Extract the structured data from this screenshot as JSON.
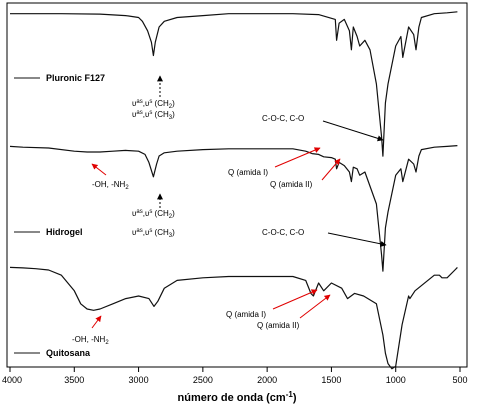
{
  "chart_data": {
    "type": "line",
    "xlabel": "número de onda (cm",
    "xlabel_sup": "-1",
    "xlabel_close": ")",
    "xlim": [
      4000,
      500
    ],
    "x_ticks": [
      "4000",
      "3500",
      "3000",
      "2500",
      "2000",
      "1500",
      "1000",
      "500"
    ],
    "x_tick_values": [
      4000,
      3500,
      3000,
      2500,
      2000,
      1500,
      1000,
      500
    ],
    "grid": false,
    "legend_placement": "left of each curve",
    "series": [
      {
        "name": "Pluronic F127",
        "x": [
          4000,
          3600,
          3300,
          3100,
          3000,
          2970,
          2930,
          2900,
          2885,
          2870,
          2840,
          2800,
          2700,
          2500,
          2300,
          2000,
          1800,
          1600,
          1470,
          1460,
          1440,
          1400,
          1360,
          1345,
          1330,
          1300,
          1280,
          1240,
          1200,
          1150,
          1110,
          1100,
          1080,
          1060,
          1000,
          960,
          945,
          900,
          860,
          842,
          820,
          800,
          700,
          600,
          520
        ],
        "y": [
          97,
          97,
          96.8,
          96,
          95,
          93,
          88,
          82,
          75,
          82,
          90,
          93,
          95,
          96,
          97,
          97,
          97,
          96.5,
          94,
          83,
          92,
          94,
          88,
          78,
          90,
          85,
          80,
          83,
          78,
          60,
          32,
          22,
          50,
          60,
          80,
          85,
          74,
          90,
          86,
          78,
          90,
          95,
          97,
          97.5,
          98
        ]
      },
      {
        "name": "Hidrogel",
        "x": [
          4000,
          3900,
          3700,
          3500,
          3400,
          3300,
          3200,
          3100,
          3000,
          2950,
          2920,
          2885,
          2860,
          2840,
          2800,
          2700,
          2500,
          2300,
          2000,
          1800,
          1700,
          1650,
          1600,
          1560,
          1500,
          1470,
          1460,
          1440,
          1400,
          1360,
          1345,
          1330,
          1300,
          1280,
          1240,
          1150,
          1110,
          1100,
          1080,
          1060,
          1000,
          960,
          945,
          900,
          860,
          842,
          820,
          800,
          700,
          600,
          520
        ],
        "y": [
          96,
          95.5,
          95,
          93,
          92.5,
          92.5,
          93,
          93.5,
          93,
          91,
          86,
          77,
          85,
          90,
          92,
          93,
          94,
          94.5,
          94.5,
          94.5,
          93,
          91.5,
          91,
          89.5,
          89,
          88,
          82,
          86,
          84,
          80,
          74,
          83,
          82,
          78,
          80,
          60,
          28,
          18,
          45,
          55,
          78,
          82,
          74,
          88,
          85,
          80,
          90,
          94,
          95.5,
          96,
          96.5
        ]
      },
      {
        "name": "Quitosana",
        "x": [
          4000,
          3900,
          3800,
          3700,
          3600,
          3500,
          3450,
          3400,
          3350,
          3300,
          3200,
          3100,
          3000,
          2920,
          2880,
          2850,
          2800,
          2700,
          2500,
          2300,
          2100,
          2000,
          1800,
          1700,
          1660,
          1640,
          1600,
          1560,
          1500,
          1420,
          1375,
          1320,
          1250,
          1150,
          1100,
          1080,
          1060,
          1030,
          1000,
          950,
          900,
          890,
          850,
          700,
          660,
          640,
          600,
          540,
          520
        ],
        "y": [
          96,
          95.8,
          95.5,
          95,
          93,
          87,
          82,
          80,
          79.5,
          80,
          82,
          84,
          85,
          84,
          81,
          83,
          88,
          91,
          92,
          92.5,
          92.5,
          92.5,
          92.5,
          91,
          86,
          85,
          90,
          87,
          90,
          88,
          84,
          86,
          85,
          82,
          70,
          63,
          59,
          57,
          58,
          74,
          85,
          84,
          87,
          93,
          93,
          92,
          92,
          95,
          96
        ]
      }
    ],
    "annotations": {
      "pluronic_ch2": "υ",
      "pluronic_ch2_sup": "as",
      "pluronic_ch2_mid": ",υ",
      "pluronic_ch2_sup2": "s",
      "pluronic_ch2_group": " (CH",
      "pluronic_ch2_sub": "2",
      "pluronic_ch3_group": " (CH",
      "pluronic_ch3_sub": "3",
      "pluronic_coc": "C-O-C, C-O",
      "hidrogel_ohnh": "-OH, -NH",
      "hidrogel_ohnh_sub": "2",
      "hidrogel_amida1": "Q (amida I)",
      "hidrogel_amida2": "Q (amida II)",
      "hidrogel_coc": "C-O-C, C-O",
      "quitosana_ohnh": "-OH, -NH",
      "quitosana_ohnh_sub": "2",
      "quitosana_amida1": "Q (amida I)",
      "quitosana_amida2": "Q (amida II)",
      "paren_close": ")"
    },
    "colors": {
      "line": "#111111",
      "arrow_red": "#e00000",
      "arrow_black": "#000000"
    }
  }
}
